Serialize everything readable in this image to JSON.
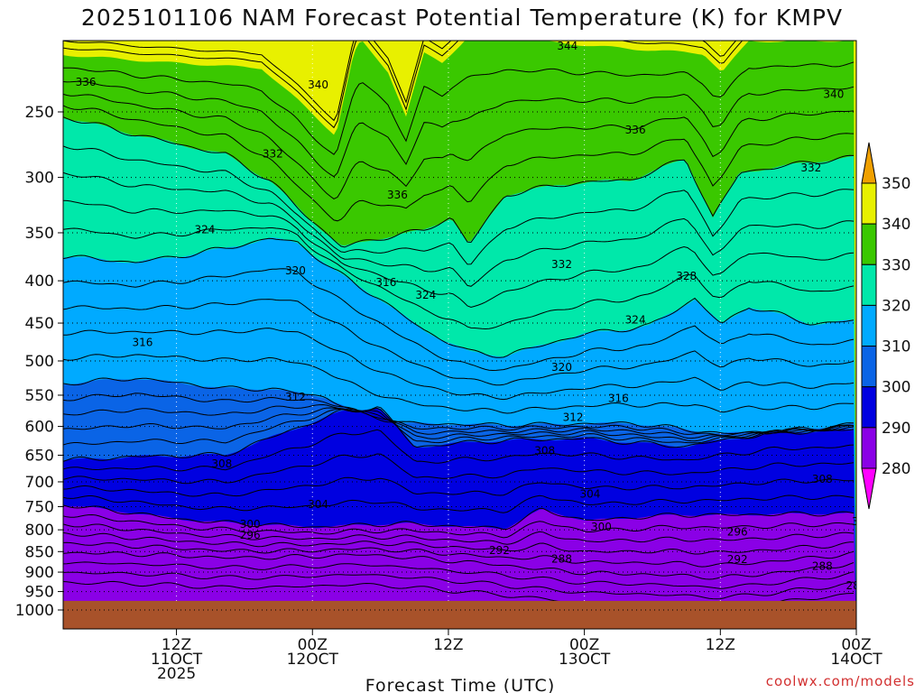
{
  "chart_data": {
    "type": "contour",
    "title": "2025101106 NAM Forecast Potential Temperature (K) for KMPV",
    "xlabel": "Forecast Time (UTC)",
    "ylabel": "Pressure (hPa)",
    "credit": "coolwx.com/models",
    "x_range_hours": [
      -4,
      66
    ],
    "x_ticks": [
      {
        "hour": 6,
        "lines": [
          "12Z",
          "11OCT",
          "2025"
        ]
      },
      {
        "hour": 18,
        "lines": [
          "00Z",
          "12OCT"
        ]
      },
      {
        "hour": 30,
        "lines": [
          "12Z"
        ]
      },
      {
        "hour": 42,
        "lines": [
          "00Z",
          "13OCT"
        ]
      },
      {
        "hour": 54,
        "lines": [
          "12Z"
        ]
      },
      {
        "hour": 66,
        "lines": [
          "00Z",
          "14OCT"
        ]
      },
      {
        "hour": 78,
        "lines": [
          "12Z"
        ]
      }
    ],
    "y_ticks": [
      250,
      300,
      350,
      400,
      450,
      500,
      550,
      600,
      650,
      700,
      750,
      800,
      850,
      900,
      950,
      1000
    ],
    "y_ticks_note": "pressure levels in hPa, 1000 at bottom",
    "surface_pressure_hpa": 975,
    "colorbar": {
      "levels": [
        280,
        290,
        300,
        310,
        320,
        330,
        340,
        350
      ],
      "colors": [
        "#ff00ff",
        "#8a00e6",
        "#0000e0",
        "#0a64e6",
        "#00aaff",
        "#00e8aa",
        "#3ac800",
        "#e8f000",
        "#f0a000"
      ],
      "labels": [
        "350",
        "340",
        "330",
        "320",
        "310",
        "300",
        "290",
        "280"
      ]
    },
    "contour_labels": [
      {
        "text": "344",
        "hour": 40.5,
        "hpa": 208
      },
      {
        "text": "344",
        "hour": 65.5,
        "hpa": 203
      },
      {
        "text": "340",
        "hour": 18.5,
        "hpa": 232
      },
      {
        "text": "340",
        "hour": 64,
        "hpa": 238
      },
      {
        "text": "336",
        "hour": -2,
        "hpa": 230
      },
      {
        "text": "336",
        "hour": 46.5,
        "hpa": 263
      },
      {
        "text": "336",
        "hour": 25.5,
        "hpa": 315
      },
      {
        "text": "332",
        "hour": 14.5,
        "hpa": 281
      },
      {
        "text": "332",
        "hour": 62,
        "hpa": 292
      },
      {
        "text": "332",
        "hour": 40,
        "hpa": 382
      },
      {
        "text": "328",
        "hour": 51,
        "hpa": 395
      },
      {
        "text": "324",
        "hour": 8.5,
        "hpa": 347
      },
      {
        "text": "324",
        "hour": 28,
        "hpa": 416
      },
      {
        "text": "324",
        "hour": 46.5,
        "hpa": 446
      },
      {
        "text": "324",
        "hour": 68,
        "hpa": 427
      },
      {
        "text": "320",
        "hour": 16.5,
        "hpa": 389
      },
      {
        "text": "320",
        "hour": 40,
        "hpa": 509
      },
      {
        "text": "320",
        "hour": 70.5,
        "hpa": 495
      },
      {
        "text": "316",
        "hour": 3,
        "hpa": 475
      },
      {
        "text": "316",
        "hour": 24.5,
        "hpa": 402
      },
      {
        "text": "316",
        "hour": 45,
        "hpa": 555
      },
      {
        "text": "316",
        "hour": 68,
        "hpa": 570
      },
      {
        "text": "312",
        "hour": 16.5,
        "hpa": 553
      },
      {
        "text": "312",
        "hour": 41,
        "hpa": 585
      },
      {
        "text": "312",
        "hour": 70,
        "hpa": 617
      },
      {
        "text": "308",
        "hour": 10,
        "hpa": 666
      },
      {
        "text": "308",
        "hour": 38.5,
        "hpa": 642
      },
      {
        "text": "308",
        "hour": 63,
        "hpa": 695
      },
      {
        "text": "304",
        "hour": 18.5,
        "hpa": 745
      },
      {
        "text": "304",
        "hour": 42.5,
        "hpa": 724
      },
      {
        "text": "304",
        "hour": 68.5,
        "hpa": 696
      },
      {
        "text": "300",
        "hour": 12.5,
        "hpa": 788
      },
      {
        "text": "300",
        "hour": 43.5,
        "hpa": 794
      },
      {
        "text": "300",
        "hour": 66.5,
        "hpa": 782
      },
      {
        "text": "296",
        "hour": 12.5,
        "hpa": 812
      },
      {
        "text": "296",
        "hour": 55.5,
        "hpa": 805
      },
      {
        "text": "292",
        "hour": 34.5,
        "hpa": 847
      },
      {
        "text": "292",
        "hour": 55.5,
        "hpa": 869
      },
      {
        "text": "288",
        "hour": 40,
        "hpa": 868
      },
      {
        "text": "288",
        "hour": 63,
        "hpa": 885
      },
      {
        "text": "284",
        "hour": 66,
        "hpa": 935
      }
    ]
  }
}
